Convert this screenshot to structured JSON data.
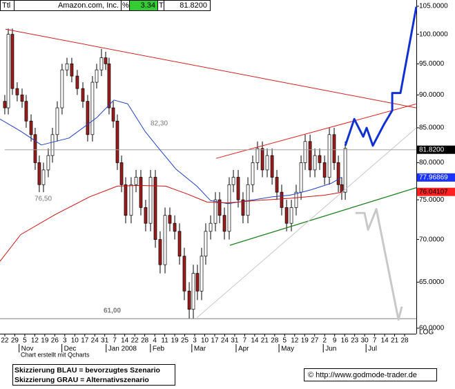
{
  "chart_data": {
    "type": "candlestick",
    "header": {
      "symbol": "Ttl",
      "name": "Amazon.com, Inc.",
      "pct_label": "%",
      "change": 3.34,
      "t_label": "T",
      "last": "81.8200"
    },
    "log_scale": true,
    "ylim": [
      60,
      105
    ],
    "yticks": [
      {
        "value": 105,
        "label": "105.0000"
      },
      {
        "value": 100,
        "label": "100.0000"
      },
      {
        "value": 95,
        "label": "95.0000"
      },
      {
        "value": 90,
        "label": "90.0000"
      },
      {
        "value": 85,
        "label": "85.0000"
      },
      {
        "value": 80,
        "label": "80.0000"
      },
      {
        "value": 75,
        "label": "75.0000"
      },
      {
        "value": 70,
        "label": "70.0000"
      },
      {
        "value": 65,
        "label": "65.0000"
      },
      {
        "value": 60,
        "label": "60.0000"
      }
    ],
    "log_label": "LOG",
    "xlim": [
      -0.48,
      41.17
    ],
    "xticks": [
      {
        "value": 0,
        "label": "22"
      },
      {
        "value": 1,
        "label": "29"
      },
      {
        "value": 2,
        "label": "5"
      },
      {
        "value": 3,
        "label": "12"
      },
      {
        "value": 4,
        "label": "19"
      },
      {
        "value": 5,
        "label": "26"
      },
      {
        "value": 6,
        "label": "3"
      },
      {
        "value": 7,
        "label": "10"
      },
      {
        "value": 8,
        "label": "17"
      },
      {
        "value": 9,
        "label": "24"
      },
      {
        "value": 10,
        "label": "31"
      },
      {
        "value": 11,
        "label": "7"
      },
      {
        "value": 12,
        "label": "14"
      },
      {
        "value": 13,
        "label": "22"
      },
      {
        "value": 14,
        "label": "28"
      },
      {
        "value": 15,
        "label": "4"
      },
      {
        "value": 16,
        "label": "11"
      },
      {
        "value": 17,
        "label": "19"
      },
      {
        "value": 18,
        "label": "25"
      },
      {
        "value": 19,
        "label": "3"
      },
      {
        "value": 20,
        "label": "10"
      },
      {
        "value": 21,
        "label": "17"
      },
      {
        "value": 22,
        "label": "24"
      },
      {
        "value": 23,
        "label": "31"
      },
      {
        "value": 24,
        "label": "7"
      },
      {
        "value": 25,
        "label": "14"
      },
      {
        "value": 26,
        "label": "21"
      },
      {
        "value": 27,
        "label": "28"
      },
      {
        "value": 28,
        "label": "5"
      },
      {
        "value": 29,
        "label": "12"
      },
      {
        "value": 30,
        "label": "19"
      },
      {
        "value": 31,
        "label": "27"
      },
      {
        "value": 32,
        "label": "2"
      },
      {
        "value": 33,
        "label": "9"
      },
      {
        "value": 34,
        "label": "16"
      },
      {
        "value": 35,
        "label": "23"
      },
      {
        "value": 36,
        "label": "30"
      },
      {
        "value": 37,
        "label": "7"
      },
      {
        "value": 38,
        "label": "14"
      },
      {
        "value": 39,
        "label": "21"
      },
      {
        "value": 40,
        "label": "28"
      }
    ],
    "month_ticks": [
      {
        "value": 1.43,
        "label": "Nov"
      },
      {
        "value": 5.71,
        "label": "Dec"
      },
      {
        "value": 10.14,
        "label": "Jan 2008"
      },
      {
        "value": 14.57,
        "label": "Feb"
      },
      {
        "value": 18.71,
        "label": "Mar"
      },
      {
        "value": 23.14,
        "label": "Apr"
      },
      {
        "value": 27.43,
        "label": "May"
      },
      {
        "value": 31.86,
        "label": "Jun"
      },
      {
        "value": 36.14,
        "label": "Jul"
      }
    ],
    "x": [
      0,
      0.35,
      0.76,
      1.24,
      1.73,
      2.14,
      2.63,
      3.04,
      3.45,
      3.87,
      4.35,
      4.77,
      5.25,
      5.73,
      6.22,
      6.7,
      7.25,
      7.81,
      8.29,
      8.77,
      9.19,
      9.67,
      10.09,
      10.43,
      10.85,
      11.26,
      11.68,
      12.09,
      12.64,
      13.13,
      13.61,
      14.09,
      14.58,
      15.06,
      15.54,
      16.03,
      16.51,
      17.0,
      17.48,
      17.96,
      18.45,
      18.86,
      19.27,
      19.69,
      20.1,
      20.59,
      21.07,
      21.49,
      21.97,
      22.45,
      22.87,
      23.35,
      23.83,
      24.32,
      24.8,
      25.28,
      25.77,
      26.25,
      26.74,
      27.22,
      27.7,
      28.19,
      28.67,
      29.15,
      29.64,
      30.05,
      30.54,
      31.02,
      31.5,
      31.99,
      32.47,
      32.95,
      33.37,
      33.71,
      34.06
    ],
    "open": [
      89,
      88,
      100,
      91,
      90,
      89,
      86,
      84,
      80,
      77,
      79,
      81,
      84,
      88,
      94,
      95,
      93,
      91,
      89,
      84,
      92,
      94,
      96,
      95,
      88,
      86,
      80,
      77,
      73,
      77,
      78,
      74,
      72,
      78,
      70,
      67,
      73,
      72,
      71,
      68,
      64,
      62,
      66,
      64,
      68,
      71,
      72,
      75,
      73,
      71,
      77,
      78,
      75,
      73,
      77,
      80,
      82,
      79,
      81,
      78,
      76,
      74,
      72,
      74,
      76,
      80,
      83,
      79,
      81,
      80,
      78,
      84,
      80,
      77,
      76
    ],
    "high": [
      90,
      101,
      101,
      92,
      91,
      90,
      87,
      85,
      81,
      80,
      82,
      85,
      89,
      95,
      96,
      96,
      94,
      92,
      90,
      93,
      95,
      97.5,
      97,
      96,
      89,
      87,
      81,
      78,
      78,
      79,
      79,
      75,
      79,
      79,
      71,
      74,
      74,
      73,
      72,
      69,
      65,
      67,
      67,
      69,
      72,
      73,
      76,
      76,
      74,
      78,
      79,
      79,
      76,
      78,
      81,
      83,
      83,
      82,
      82,
      79,
      77,
      75,
      75,
      77,
      81,
      84,
      84,
      82,
      82,
      81,
      85,
      85,
      81,
      78,
      83
    ],
    "low": [
      87,
      87,
      90,
      89,
      88,
      85,
      83,
      79,
      76,
      76,
      78,
      80,
      83,
      87,
      93,
      92,
      90,
      88,
      83,
      83,
      91,
      93,
      94,
      87,
      85,
      79,
      76,
      72,
      72,
      76,
      73,
      71,
      71,
      69,
      66,
      66,
      71,
      70,
      67,
      63,
      61,
      61,
      63,
      63,
      67,
      70,
      71,
      72,
      70,
      70,
      76,
      74,
      72,
      72,
      76,
      79,
      78,
      78,
      77,
      75,
      73,
      71,
      71,
      73,
      75,
      79,
      78,
      78,
      79,
      77,
      77,
      79,
      76,
      75,
      75
    ],
    "close": [
      88,
      100,
      91,
      90,
      89,
      86,
      84,
      80,
      77,
      79,
      81,
      84,
      88,
      94,
      95,
      93,
      91,
      89,
      84,
      92,
      94,
      96,
      95,
      88,
      86,
      80,
      77,
      73,
      77,
      78,
      74,
      72,
      78,
      70,
      67,
      73,
      72,
      71,
      68,
      64,
      62,
      66,
      64,
      68,
      71,
      72,
      75,
      73,
      71,
      77,
      78,
      75,
      73,
      77,
      80,
      82,
      79,
      81,
      78,
      76,
      74,
      72,
      74,
      76,
      80,
      83,
      79,
      81,
      80,
      78,
      84,
      80,
      77,
      76,
      82
    ],
    "up_color": "#ffffff",
    "down_color": "#9b1c1c",
    "moving_averages": [
      {
        "color": "#2040c0",
        "x": [
          -0.48,
          1.59,
          3.66,
          6.42,
          9.19,
          10.92,
          12.3,
          14.02,
          15.41,
          17.13,
          19.21,
          20.59,
          22.31,
          24.39,
          26.8,
          28.53,
          30.6,
          32.68,
          33.71
        ],
        "values": [
          86.3,
          84.5,
          82.5,
          83.5,
          86.5,
          89.2,
          88.6,
          84.5,
          82.0,
          79.1,
          76.8,
          74.9,
          74.5,
          74.9,
          75.4,
          75.6,
          76.3,
          77.2,
          78.0
        ]
      },
      {
        "color": "#cc1010",
        "x": [
          -0.48,
          1.59,
          5.04,
          8.5,
          11.26,
          13.33,
          16.1,
          18.17,
          20.24,
          22.31,
          25.08,
          28.53,
          31.99,
          33.71
        ],
        "values": [
          67.4,
          70.6,
          73.1,
          75.4,
          76.8,
          76.9,
          76.8,
          75.8,
          74.7,
          74.6,
          74.9,
          75.2,
          75.6,
          76.0
        ]
      }
    ],
    "lines": [
      {
        "color": "#d02020",
        "width": 1,
        "x": [
          0.07,
          41.17
        ],
        "values": [
          100.9,
          88.0
        ]
      },
      {
        "color": "#e02020",
        "width": 1,
        "x": [
          21.14,
          41.17
        ],
        "values": [
          80.6,
          88.6
        ]
      },
      {
        "color": "#208020",
        "width": 1.3,
        "x": [
          22.52,
          41.17
        ],
        "values": [
          69.3,
          76.6
        ]
      },
      {
        "color": "#c8c8c8",
        "width": 1,
        "x": [
          19.21,
          41.17
        ],
        "values": [
          61.1,
          85.0
        ]
      },
      {
        "color": "#a0a0a0",
        "width": 1,
        "x": [
          0,
          41.17
        ],
        "values": [
          81.82,
          81.82
        ]
      },
      {
        "color": "#808080",
        "width": 1,
        "x": [
          -0.48,
          41.17
        ],
        "values": [
          61.0,
          61.0
        ]
      },
      {
        "color": "#1030d0",
        "width": 3,
        "x": [
          34.06,
          34.96,
          35.86,
          36.2,
          36.82,
          37.93,
          38.76,
          38.76,
          39.58,
          41.17
        ],
        "values": [
          82.4,
          86.3,
          83.7,
          85.0,
          82.4,
          85.5,
          87.6,
          90.3,
          90.3,
          104.9
        ]
      },
      {
        "color": "#c8c8c8",
        "width": 3,
        "x": [
          35.09,
          35.99,
          36.34,
          37.17,
          39.38,
          39.72
        ],
        "values": [
          73.3,
          73.3,
          71.2,
          73.8,
          60.9,
          62.3
        ]
      }
    ],
    "price_tags": [
      {
        "value": 81.82,
        "label": "81.8200",
        "color": "#000000"
      },
      {
        "value": 77.96869,
        "label": "77.96869",
        "color": "#1a33ff"
      },
      {
        "value": 76.04107,
        "label": "76.04107",
        "color": "#ff2020"
      }
    ],
    "annotations": [
      "82,30",
      "76,50",
      "61,00"
    ],
    "credit": "Chart erstellt mit Qcharts",
    "notes": [
      "Skizzierung BLAU = bevorzugtes Szenario",
      "Skizzierung GRAU = Alternativszenario"
    ],
    "source": "© http://www.godmode-trader.de"
  }
}
